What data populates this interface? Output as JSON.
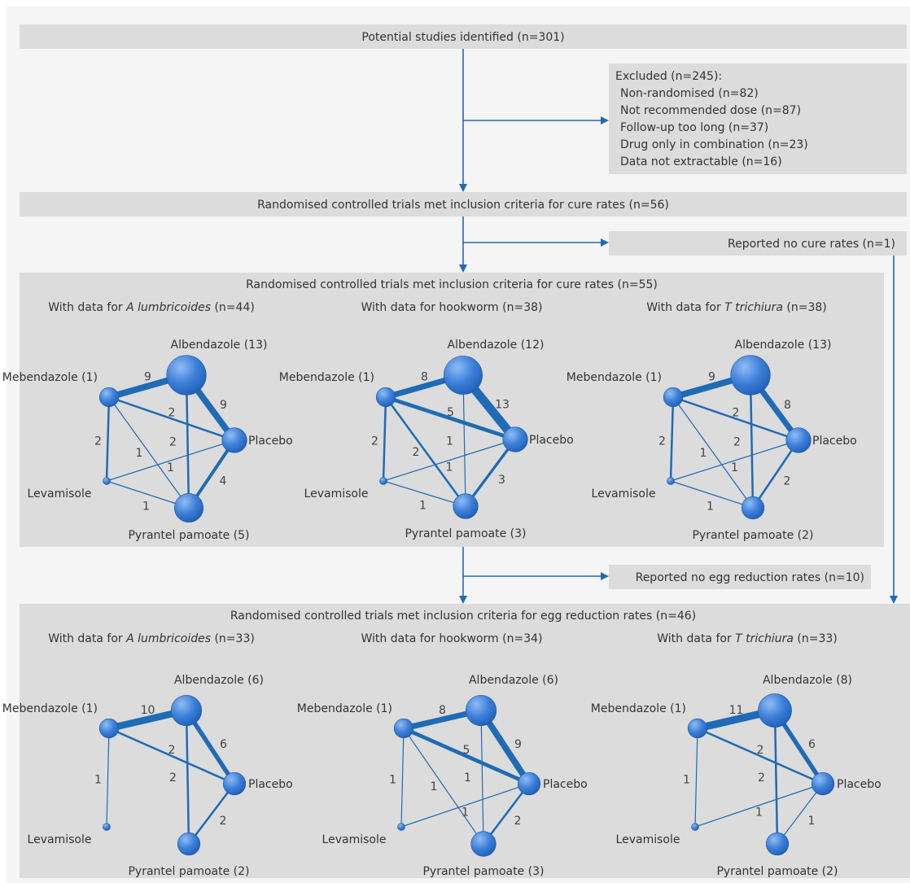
{
  "colors": {
    "page_bg": "#f5f5f5",
    "box": "#dcdcdc",
    "arrow": "#1f6bb5",
    "edge": "#1f6bb5",
    "node": "#2f6fd1",
    "node_light": "#7fb0f2",
    "text": "#333333"
  },
  "flow": {
    "identified": "Potential studies identified (n=301)",
    "excluded": {
      "title": "Excluded (n=245):",
      "items": [
        "Non-randomised (n=82)",
        "Not recommended dose (n=87)",
        "Follow-up too long (n=37)",
        "Drug only in combination (n=23)",
        "Data not extractable (n=16)"
      ]
    },
    "rct_cure_56": "Randomised controlled trials met inclusion criteria for cure rates (n=56)",
    "no_cure": "Reported no cure rates (n=1)",
    "rct_cure_55": "Randomised controlled trials met inclusion criteria for cure rates (n=55)",
    "no_egg": "Reported no egg reduction rates (n=10)",
    "rct_egg_46": "Randomised controlled trials met inclusion criteria for egg reduction rates (n=46)"
  },
  "networks": [
    {
      "section": "cure",
      "heading": {
        "prefix": "With data for ",
        "italic": "A lumbricoides",
        "suffix": " (n=44)"
      },
      "nodes": [
        {
          "id": "alb",
          "label": "Albendazole (13)",
          "weight": 13
        },
        {
          "id": "meb",
          "label": "Mebendazole (1)",
          "weight": 1
        },
        {
          "id": "pla",
          "label": "Placebo",
          "weight": 3
        },
        {
          "id": "lev",
          "label": "Levamisole",
          "weight": 0
        },
        {
          "id": "pyr",
          "label": "Pyrantel pamoate (5)",
          "weight": 5
        }
      ],
      "edges": [
        {
          "from": "meb",
          "to": "alb",
          "n": 9
        },
        {
          "from": "alb",
          "to": "pla",
          "n": 9
        },
        {
          "from": "alb",
          "to": "pyr",
          "n": 2
        },
        {
          "from": "meb",
          "to": "pla",
          "n": 2
        },
        {
          "from": "meb",
          "to": "lev",
          "n": 2
        },
        {
          "from": "meb",
          "to": "pyr",
          "n": 1
        },
        {
          "from": "lev",
          "to": "pla",
          "n": 1
        },
        {
          "from": "lev",
          "to": "pyr",
          "n": 1
        },
        {
          "from": "pla",
          "to": "pyr",
          "n": 4
        }
      ]
    },
    {
      "section": "cure",
      "heading": {
        "prefix": "With data for hookworm (n=38)",
        "italic": "",
        "suffix": ""
      },
      "nodes": [
        {
          "id": "alb",
          "label": "Albendazole (12)",
          "weight": 12
        },
        {
          "id": "meb",
          "label": "Mebendazole (1)",
          "weight": 1
        },
        {
          "id": "pla",
          "label": "Placebo",
          "weight": 3
        },
        {
          "id": "lev",
          "label": "Levamisole",
          "weight": 0
        },
        {
          "id": "pyr",
          "label": "Pyrantel pamoate (3)",
          "weight": 3
        }
      ],
      "edges": [
        {
          "from": "meb",
          "to": "alb",
          "n": 8
        },
        {
          "from": "alb",
          "to": "pla",
          "n": 13
        },
        {
          "from": "alb",
          "to": "pyr",
          "n": 1
        },
        {
          "from": "meb",
          "to": "pla",
          "n": 5
        },
        {
          "from": "meb",
          "to": "lev",
          "n": 2
        },
        {
          "from": "meb",
          "to": "pyr",
          "n": 2
        },
        {
          "from": "lev",
          "to": "pla",
          "n": 1
        },
        {
          "from": "lev",
          "to": "pyr",
          "n": 1
        },
        {
          "from": "pla",
          "to": "pyr",
          "n": 3
        }
      ]
    },
    {
      "section": "cure",
      "heading": {
        "prefix": "With data for ",
        "italic": "T trichiura",
        "suffix": " (n=38)"
      },
      "nodes": [
        {
          "id": "alb",
          "label": "Albendazole (13)",
          "weight": 13
        },
        {
          "id": "meb",
          "label": "Mebendazole (1)",
          "weight": 1
        },
        {
          "id": "pla",
          "label": "Placebo",
          "weight": 3
        },
        {
          "id": "lev",
          "label": "Levamisole",
          "weight": 0
        },
        {
          "id": "pyr",
          "label": "Pyrantel pamoate (2)",
          "weight": 2
        }
      ],
      "edges": [
        {
          "from": "meb",
          "to": "alb",
          "n": 9
        },
        {
          "from": "alb",
          "to": "pla",
          "n": 8
        },
        {
          "from": "alb",
          "to": "pyr",
          "n": 2
        },
        {
          "from": "meb",
          "to": "pla",
          "n": 2
        },
        {
          "from": "meb",
          "to": "lev",
          "n": 2
        },
        {
          "from": "meb",
          "to": "pyr",
          "n": 1
        },
        {
          "from": "lev",
          "to": "pla",
          "n": 1
        },
        {
          "from": "lev",
          "to": "pyr",
          "n": 1
        },
        {
          "from": "pla",
          "to": "pyr",
          "n": 2
        }
      ]
    },
    {
      "section": "egg",
      "heading": {
        "prefix": "With data for ",
        "italic": "A lumbricoides",
        "suffix": " (n=33)"
      },
      "nodes": [
        {
          "id": "alb",
          "label": "Albendazole (6)",
          "weight": 6
        },
        {
          "id": "meb",
          "label": "Mebendazole (1)",
          "weight": 1
        },
        {
          "id": "pla",
          "label": "Placebo",
          "weight": 2
        },
        {
          "id": "lev",
          "label": "Levamisole",
          "weight": 0
        },
        {
          "id": "pyr",
          "label": "Pyrantel pamoate (2)",
          "weight": 2
        }
      ],
      "edges": [
        {
          "from": "meb",
          "to": "alb",
          "n": 10
        },
        {
          "from": "alb",
          "to": "pla",
          "n": 6
        },
        {
          "from": "alb",
          "to": "pyr",
          "n": 2
        },
        {
          "from": "meb",
          "to": "pla",
          "n": 2
        },
        {
          "from": "meb",
          "to": "lev",
          "n": 1
        },
        {
          "from": "pla",
          "to": "pyr",
          "n": 2
        }
      ]
    },
    {
      "section": "egg",
      "heading": {
        "prefix": "With data for hookworm (n=34)",
        "italic": "",
        "suffix": ""
      },
      "nodes": [
        {
          "id": "alb",
          "label": "Albendazole (6)",
          "weight": 6
        },
        {
          "id": "meb",
          "label": "Mebendazole (1)",
          "weight": 1
        },
        {
          "id": "pla",
          "label": "Placebo",
          "weight": 2
        },
        {
          "id": "lev",
          "label": "Levamisole",
          "weight": 0
        },
        {
          "id": "pyr",
          "label": "Pyrantel pamoate (3)",
          "weight": 3
        }
      ],
      "edges": [
        {
          "from": "meb",
          "to": "alb",
          "n": 8
        },
        {
          "from": "alb",
          "to": "pla",
          "n": 9
        },
        {
          "from": "alb",
          "to": "pyr",
          "n": 1
        },
        {
          "from": "meb",
          "to": "pla",
          "n": 5
        },
        {
          "from": "meb",
          "to": "lev",
          "n": 1
        },
        {
          "from": "meb",
          "to": "pyr",
          "n": 1
        },
        {
          "from": "lev",
          "to": "pla",
          "n": 1
        },
        {
          "from": "pla",
          "to": "pyr",
          "n": 2
        }
      ]
    },
    {
      "section": "egg",
      "heading": {
        "prefix": "With data for ",
        "italic": "T trichiura",
        "suffix": " (n=33)"
      },
      "nodes": [
        {
          "id": "alb",
          "label": "Albendazole (8)",
          "weight": 8
        },
        {
          "id": "meb",
          "label": "Mebendazole (1)",
          "weight": 1
        },
        {
          "id": "pla",
          "label": "Placebo",
          "weight": 2
        },
        {
          "id": "lev",
          "label": "Levamisole",
          "weight": 0
        },
        {
          "id": "pyr",
          "label": "Pyrantel pamoate (2)",
          "weight": 2
        }
      ],
      "edges": [
        {
          "from": "meb",
          "to": "alb",
          "n": 11
        },
        {
          "from": "alb",
          "to": "pla",
          "n": 6
        },
        {
          "from": "alb",
          "to": "pyr",
          "n": 2
        },
        {
          "from": "meb",
          "to": "pla",
          "n": 2
        },
        {
          "from": "meb",
          "to": "lev",
          "n": 1
        },
        {
          "from": "lev",
          "to": "pla",
          "n": 1
        },
        {
          "from": "pla",
          "to": "pyr",
          "n": 1
        }
      ]
    }
  ]
}
